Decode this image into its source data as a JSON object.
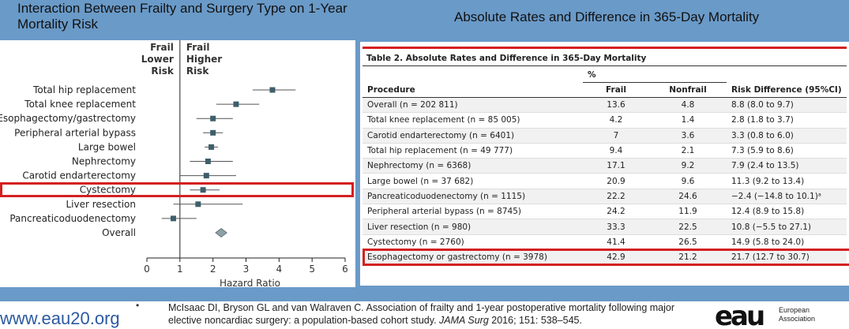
{
  "slide": {
    "title_left": "Interaction Between Frailty and Surgery Type on 1-Year Mortality Risk",
    "title_right": "Absolute Rates and Difference in 365-Day Mortality",
    "bullet": "•",
    "url": "www.eau20.org",
    "citation_plain": "McIsaac DI, Bryson GL and van Walraven C. Association of frailty and 1-year postoperative mortality following major elective noncardiac surgery: a population-based cohort study. ",
    "citation_journal": "JAMA Surg",
    "citation_rest": " 2016; 151: 538–545.",
    "logo_mark": "eau",
    "logo_text_1": "European",
    "logo_text_2": "Association",
    "colors": {
      "band": "#6a9ac8",
      "highlight": "#d42020",
      "marker": "#3d5f6a",
      "url": "#2c5aa0"
    }
  },
  "chart_data": [
    {
      "type": "scatter",
      "subtype": "forest-plot",
      "xlabel": "Hazard Ratio",
      "xlim": [
        0,
        6
      ],
      "xticks": [
        "0",
        "1",
        "2",
        "3",
        "4",
        "5",
        "6"
      ],
      "reference_line": 1,
      "header_left": [
        "Frail",
        "Lower",
        "Risk"
      ],
      "header_right": [
        "Frail",
        "Higher",
        "Risk"
      ],
      "highlight": "Cystectomy",
      "rows": [
        {
          "label": "Total hip replacement",
          "hr": 3.8,
          "lo": 3.2,
          "hi": 4.5
        },
        {
          "label": "Total knee replacement",
          "hr": 2.7,
          "lo": 2.1,
          "hi": 3.4
        },
        {
          "label": "Esophagectomy/gastrectomy",
          "hr": 2.0,
          "lo": 1.5,
          "hi": 2.6
        },
        {
          "label": "Peripheral arterial bypass",
          "hr": 2.0,
          "lo": 1.7,
          "hi": 2.3
        },
        {
          "label": "Large bowel",
          "hr": 1.95,
          "lo": 1.75,
          "hi": 2.15
        },
        {
          "label": "Nephrectomy",
          "hr": 1.85,
          "lo": 1.3,
          "hi": 2.6
        },
        {
          "label": "Carotid endarterectomy",
          "hr": 1.8,
          "lo": 1.0,
          "hi": 2.7
        },
        {
          "label": "Cystectomy",
          "hr": 1.7,
          "lo": 1.3,
          "hi": 2.2
        },
        {
          "label": "Liver resection",
          "hr": 1.55,
          "lo": 0.8,
          "hi": 2.9
        },
        {
          "label": "Pancreaticoduodenectomy",
          "hr": 0.8,
          "lo": 0.45,
          "hi": 1.5
        },
        {
          "label": "Overall",
          "hr": 2.25,
          "lo": 2.15,
          "hi": 2.35,
          "summary": true
        }
      ]
    },
    {
      "type": "table",
      "title": "Table 2. Absolute Rates and Difference in 365-Day Mortality",
      "group_header": "%",
      "columns": [
        "Procedure",
        "Frail",
        "Nonfrail",
        "Risk Difference (95%CI)"
      ],
      "highlight_row": 9,
      "rows": [
        [
          "Overall (n = 202 811)",
          "13.6",
          "4.8",
          "8.8 (8.0 to 9.7)"
        ],
        [
          "Total knee replacement (n = 85 005)",
          "4.2",
          "1.4",
          "2.8 (1.8 to 3.7)"
        ],
        [
          "Carotid endarterectomy (n = 6401)",
          "7",
          "3.6",
          "3.3 (0.8 to 6.0)"
        ],
        [
          "Total hip replacement (n = 49 777)",
          "9.4",
          "2.1",
          "7.3 (5.9 to 8.6)"
        ],
        [
          "Nephrectomy (n = 6368)",
          "17.1",
          "9.2",
          "7.9 (2.4 to 13.5)"
        ],
        [
          "Large bowel (n = 37 682)",
          "20.9",
          "9.6",
          "11.3 (9.2 to 13.4)"
        ],
        [
          "Pancreaticoduodenectomy (n = 1115)",
          "22.2",
          "24.6",
          "−2.4 (−14.8 to 10.1)ᵃ"
        ],
        [
          "Peripheral arterial bypass (n = 8745)",
          "24.2",
          "11.9",
          "12.4 (8.9 to 15.8)"
        ],
        [
          "Liver resection (n = 980)",
          "33.3",
          "22.5",
          "10.8 (−5.5 to 27.1)"
        ],
        [
          "Cystectomy (n = 2760)",
          "41.4",
          "26.5",
          "14.9 (5.8 to 24.0)"
        ],
        [
          "Esophagectomy or gastrectomy (n = 3978)",
          "42.9",
          "21.2",
          "21.7 (12.7 to 30.7)"
        ]
      ]
    }
  ]
}
